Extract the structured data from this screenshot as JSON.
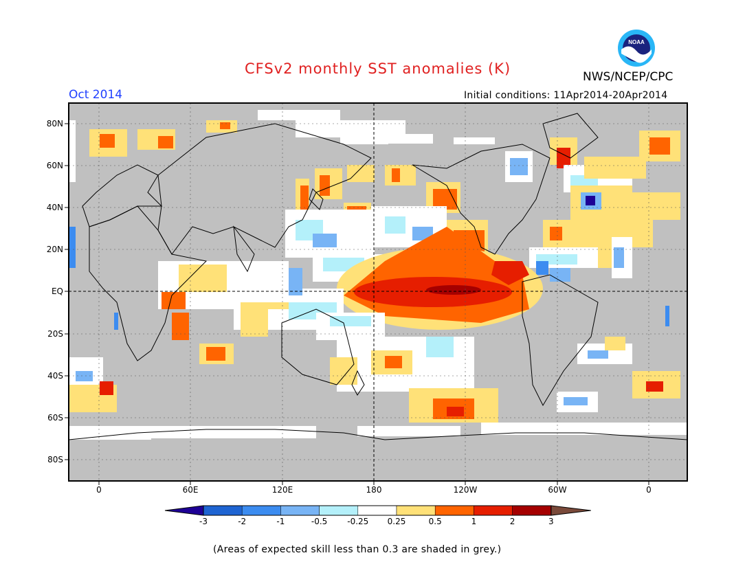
{
  "header": {
    "title": "CFSv2 monthly SST anomalies (K)",
    "agency": "NWS/NCEP/CPC",
    "month": "Oct 2014",
    "initial_conditions": "Initial conditions: 11Apr2014-20Apr2014",
    "logo_text": "NOAA"
  },
  "axes": {
    "lat_labels": [
      "80N",
      "60N",
      "40N",
      "20N",
      "EQ",
      "20S",
      "40S",
      "60S",
      "80S"
    ],
    "lon_labels": [
      "0",
      "60E",
      "120E",
      "180",
      "120W",
      "60W",
      "0"
    ]
  },
  "colorbar": {
    "labels": [
      "-3",
      "-2",
      "-1",
      "-0.5",
      "-0.25",
      "0.25",
      "0.5",
      "1",
      "2",
      "3"
    ],
    "colors": [
      "#1e0096",
      "#1e64d2",
      "#3c8cf0",
      "#78b4f5",
      "#b4f0fa",
      "#ffffff",
      "#ffe178",
      "#ff6400",
      "#e61e00",
      "#a50000",
      "#7a4a3a"
    ]
  },
  "colors": {
    "land_grey": "#c0c0c0",
    "title_red": "#e02020",
    "month_blue": "#2040ff"
  },
  "footnote": "(Areas of expected skill less than 0.3 are shaded in grey.)"
}
